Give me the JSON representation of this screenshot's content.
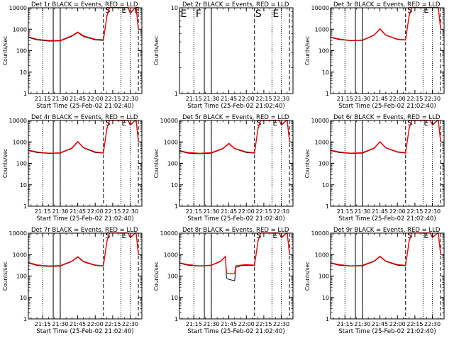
{
  "page": {
    "start_time_label": "Start Time (25-Feb-02 21:02:40)",
    "y_axis_label": "Counts/sec",
    "x_tick_labels": [
      "21:15",
      "21:30",
      "21:45",
      "22:00",
      "22:15",
      "22:30"
    ],
    "y_tick_labels": [
      "1",
      "10",
      "100",
      "1000",
      "10000"
    ],
    "series_colors": {
      "events": "#000000",
      "lld": "#ff0000"
    }
  },
  "chart_data": [
    {
      "type": "line",
      "title": "Det 1r BLACK = Events, RED = LLD",
      "xlabel": "Start Time (25-Feb-02 21:02:40)",
      "ylabel": "Counts/sec",
      "yscale": "log",
      "ylim": [
        1,
        10000
      ],
      "x_tick_labels": [
        "21:15",
        "21:30",
        "21:45",
        "22:00",
        "22:15",
        "22:30"
      ],
      "markers": {
        "dotted": [
          "21:15",
          "21:30",
          "22:22",
          "22:30"
        ],
        "solid": [
          "21:24",
          "21:30"
        ],
        "dashed": [
          "22:07",
          "22:37"
        ]
      },
      "annotations": [
        "S",
        "E",
        "E"
      ],
      "series": [
        {
          "name": "BLACK = Events",
          "color": "#000000",
          "x": [
            "21:02",
            "21:10",
            "21:20",
            "21:30",
            "21:40",
            "21:45",
            "21:50",
            "22:00",
            "22:07",
            "22:10",
            "22:12",
            "22:13",
            "22:28",
            "22:30",
            "22:35",
            "22:37"
          ],
          "y": [
            420,
            320,
            280,
            285,
            470,
            700,
            460,
            320,
            300,
            4000,
            9000,
            12000,
            12000,
            5500,
            11000,
            1000
          ]
        },
        {
          "name": "RED = LLD",
          "color": "#ff0000",
          "x": [
            "21:02",
            "21:10",
            "21:20",
            "21:30",
            "21:40",
            "21:45",
            "21:50",
            "22:00",
            "22:07",
            "22:10",
            "22:12",
            "22:13",
            "22:28",
            "22:30",
            "22:35",
            "22:37"
          ],
          "y": [
            450,
            340,
            300,
            300,
            500,
            740,
            490,
            340,
            320,
            4300,
            9500,
            12000,
            12000,
            6000,
            11500,
            1100
          ]
        }
      ]
    },
    {
      "type": "line",
      "title": "Det 2r BLACK = Events, RED = LLD",
      "xlabel": "Start Time (25-Feb-02 21:02:40)",
      "ylabel": "Counts/sec",
      "yscale": "log",
      "ylim": [
        1,
        10
      ],
      "y_tick_labels": [
        "1",
        "10"
      ],
      "x_tick_labels": [
        "21:15",
        "21:30",
        "21:45",
        "22:00",
        "22:15",
        "22:30"
      ],
      "markers": {
        "dotted": [
          "21:15",
          "21:30",
          "22:22",
          "22:30"
        ],
        "solid": [
          "21:24",
          "21:30"
        ],
        "dashed": [
          "22:07",
          "22:37"
        ]
      },
      "annotations": [
        "E",
        "F",
        "S",
        "E"
      ],
      "series": []
    },
    {
      "type": "line",
      "title": "Det 3r BLACK = Events, RED = LLD",
      "xlabel": "Start Time (25-Feb-02 21:02:40)",
      "ylabel": "Counts/sec",
      "yscale": "log",
      "ylim": [
        1,
        10000
      ],
      "x_tick_labels": [
        "21:15",
        "21:30",
        "21:45",
        "22:00",
        "22:15",
        "22:30"
      ],
      "markers": {
        "dotted": [
          "21:15",
          "21:30",
          "22:22",
          "22:30"
        ],
        "solid": [
          "21:24",
          "21:30"
        ],
        "dashed": [
          "22:07",
          "22:37"
        ]
      },
      "annotations": [
        "S",
        "E"
      ],
      "series": [
        {
          "name": "BLACK = Events",
          "color": "#000000",
          "x": [
            "21:02",
            "21:10",
            "21:20",
            "21:30",
            "21:40",
            "21:45",
            "21:50",
            "22:00",
            "22:07",
            "22:10",
            "22:12",
            "22:13",
            "22:28",
            "22:35",
            "22:37"
          ],
          "y": [
            420,
            330,
            290,
            300,
            520,
            1000,
            520,
            330,
            310,
            4000,
            9000,
            12000,
            12000,
            11000,
            1000
          ]
        },
        {
          "name": "RED = LLD",
          "color": "#ff0000",
          "x": [
            "21:02",
            "21:10",
            "21:20",
            "21:30",
            "21:40",
            "21:45",
            "21:50",
            "22:00",
            "22:07",
            "22:10",
            "22:12",
            "22:13",
            "22:28",
            "22:35",
            "22:37"
          ],
          "y": [
            440,
            350,
            300,
            310,
            540,
            1050,
            540,
            345,
            320,
            4300,
            9500,
            12000,
            12000,
            11500,
            1100
          ]
        }
      ]
    },
    {
      "type": "line",
      "title": "Det 4r BLACK = Events, RED = LLD",
      "xlabel": "Start Time (25-Feb-02 21:02:40)",
      "ylabel": "Counts/sec",
      "yscale": "log",
      "ylim": [
        1,
        10000
      ],
      "x_tick_labels": [
        "21:15",
        "21:30",
        "21:45",
        "22:00",
        "22:15",
        "22:30"
      ],
      "markers": {
        "dotted": [
          "21:15",
          "21:30",
          "22:22",
          "22:30"
        ],
        "solid": [
          "21:24",
          "21:30"
        ],
        "dashed": [
          "22:07",
          "22:37"
        ]
      },
      "annotations": [
        "S",
        "E"
      ],
      "series": [
        {
          "name": "BLACK = Events",
          "color": "#000000",
          "x": [
            "21:02",
            "21:10",
            "21:20",
            "21:30",
            "21:40",
            "21:45",
            "21:50",
            "22:00",
            "22:07",
            "22:10",
            "22:12",
            "22:13",
            "22:28",
            "22:30",
            "22:35",
            "22:37"
          ],
          "y": [
            400,
            320,
            290,
            300,
            500,
            1000,
            520,
            320,
            300,
            4000,
            9000,
            12000,
            12000,
            6000,
            11000,
            1000
          ]
        },
        {
          "name": "RED = LLD",
          "color": "#ff0000",
          "x": [
            "21:02",
            "21:10",
            "21:20",
            "21:30",
            "21:40",
            "21:45",
            "21:50",
            "22:00",
            "22:07",
            "22:10",
            "22:12",
            "22:13",
            "22:28",
            "22:30",
            "22:35",
            "22:37"
          ],
          "y": [
            420,
            340,
            300,
            310,
            520,
            1050,
            540,
            340,
            310,
            4300,
            9500,
            12000,
            12000,
            6500,
            11500,
            1100
          ]
        }
      ]
    },
    {
      "type": "line",
      "title": "Det 5r BLACK = Events, RED = LLD",
      "xlabel": "Start Time (25-Feb-02 21:02:40)",
      "ylabel": "Counts/sec",
      "yscale": "log",
      "ylim": [
        1,
        10000
      ],
      "x_tick_labels": [
        "21:15",
        "21:30",
        "21:45",
        "22:00",
        "22:15",
        "22:30"
      ],
      "markers": {
        "dotted": [
          "21:15",
          "21:30",
          "22:22",
          "22:30"
        ],
        "solid": [
          "21:24",
          "21:30"
        ],
        "dashed": [
          "22:07",
          "22:37"
        ]
      },
      "annotations": [
        "S",
        "E"
      ],
      "series": [
        {
          "name": "BLACK = Events",
          "color": "#000000",
          "x": [
            "21:02",
            "21:10",
            "21:20",
            "21:30",
            "21:40",
            "21:45",
            "21:50",
            "22:00",
            "22:07",
            "22:10",
            "22:12",
            "22:13",
            "22:28",
            "22:30",
            "22:35",
            "22:37"
          ],
          "y": [
            380,
            300,
            280,
            300,
            480,
            820,
            480,
            320,
            300,
            4000,
            9000,
            12000,
            12000,
            6000,
            11000,
            1000
          ]
        },
        {
          "name": "RED = LLD",
          "color": "#ff0000",
          "x": [
            "21:02",
            "21:10",
            "21:20",
            "21:30",
            "21:40",
            "21:45",
            "21:50",
            "22:00",
            "22:07",
            "22:10",
            "22:12",
            "22:13",
            "22:28",
            "22:30",
            "22:35",
            "22:37"
          ],
          "y": [
            400,
            320,
            295,
            315,
            500,
            860,
            500,
            340,
            315,
            4300,
            9500,
            12000,
            12000,
            6500,
            11500,
            1100
          ]
        }
      ]
    },
    {
      "type": "line",
      "title": "Det 6r BLACK = Events, RED = LLD",
      "xlabel": "Start Time (25-Feb-02 21:02:40)",
      "ylabel": "Counts/sec",
      "yscale": "log",
      "ylim": [
        1,
        10000
      ],
      "x_tick_labels": [
        "21:15",
        "21:30",
        "21:45",
        "22:00",
        "22:15",
        "22:30"
      ],
      "markers": {
        "dotted": [
          "21:15",
          "21:30",
          "22:22",
          "22:30"
        ],
        "solid": [
          "21:24",
          "21:30"
        ],
        "dashed": [
          "22:07",
          "22:37"
        ]
      },
      "annotations": [
        "S",
        "E"
      ],
      "series": [
        {
          "name": "BLACK = Events",
          "color": "#000000",
          "x": [
            "21:02",
            "21:10",
            "21:20",
            "21:30",
            "21:40",
            "21:45",
            "21:50",
            "22:00",
            "22:07",
            "22:10",
            "22:12",
            "22:13",
            "22:28",
            "22:30",
            "22:35",
            "22:37"
          ],
          "y": [
            400,
            320,
            290,
            300,
            500,
            980,
            520,
            330,
            300,
            4000,
            9000,
            12000,
            12000,
            6000,
            11000,
            1000
          ]
        },
        {
          "name": "RED = LLD",
          "color": "#ff0000",
          "x": [
            "21:02",
            "21:10",
            "21:20",
            "21:30",
            "21:40",
            "21:45",
            "21:50",
            "22:00",
            "22:07",
            "22:10",
            "22:12",
            "22:13",
            "22:28",
            "22:30",
            "22:35",
            "22:37"
          ],
          "y": [
            420,
            340,
            300,
            315,
            520,
            1020,
            540,
            345,
            315,
            4300,
            9500,
            12000,
            12000,
            6500,
            11500,
            1100
          ]
        }
      ]
    },
    {
      "type": "line",
      "title": "Det 7r BLACK = Events, RED = LLD",
      "xlabel": "Start Time (25-Feb-02 21:02:40)",
      "ylabel": "Counts/sec",
      "yscale": "log",
      "ylim": [
        1,
        10000
      ],
      "x_tick_labels": [
        "21:15",
        "21:30",
        "21:45",
        "22:00",
        "22:15",
        "22:30"
      ],
      "markers": {
        "dotted": [
          "21:15",
          "21:30",
          "22:22",
          "22:30"
        ],
        "solid": [
          "21:24",
          "21:30"
        ],
        "dashed": [
          "22:07",
          "22:37"
        ]
      },
      "annotations": [
        "S",
        "E"
      ],
      "series": [
        {
          "name": "BLACK = Events",
          "color": "#000000",
          "x": [
            "21:02",
            "21:10",
            "21:20",
            "21:30",
            "21:40",
            "21:45",
            "21:50",
            "22:00",
            "22:07",
            "22:10",
            "22:12",
            "22:13",
            "22:28",
            "22:30",
            "22:35",
            "22:37"
          ],
          "y": [
            420,
            310,
            280,
            290,
            480,
            760,
            460,
            310,
            290,
            4000,
            9000,
            12000,
            12000,
            6000,
            11000,
            1000
          ]
        },
        {
          "name": "RED = LLD",
          "color": "#ff0000",
          "x": [
            "21:02",
            "21:10",
            "21:20",
            "21:30",
            "21:40",
            "21:45",
            "21:50",
            "22:00",
            "22:07",
            "22:10",
            "22:12",
            "22:13",
            "22:28",
            "22:30",
            "22:35",
            "22:37"
          ],
          "y": [
            440,
            330,
            295,
            305,
            500,
            800,
            480,
            325,
            305,
            4300,
            9500,
            12000,
            12000,
            6500,
            11500,
            1100
          ]
        }
      ]
    },
    {
      "type": "line",
      "title": "Det 8r BLACK = Events, RED = LLD",
      "xlabel": "Start Time (25-Feb-02 21:02:40)",
      "ylabel": "Counts/sec",
      "yscale": "log",
      "ylim": [
        1,
        10000
      ],
      "x_tick_labels": [
        "21:15",
        "21:30",
        "21:45",
        "22:00",
        "22:15",
        "22:30"
      ],
      "markers": {
        "dotted": [
          "21:15",
          "21:30",
          "22:22",
          "22:30"
        ],
        "solid": [
          "21:24",
          "21:30"
        ],
        "dashed": [
          "22:07",
          "22:37"
        ]
      },
      "annotations": [
        "S",
        "E"
      ],
      "series": [
        {
          "name": "BLACK = Events",
          "color": "#000000",
          "x": [
            "21:02",
            "21:10",
            "21:20",
            "21:30",
            "21:38",
            "21:42",
            "21:43",
            "21:45",
            "21:50",
            "21:51",
            "21:55",
            "22:00",
            "22:07",
            "22:10",
            "22:12",
            "22:13",
            "22:28",
            "22:30",
            "22:35",
            "22:37"
          ],
          "y": [
            400,
            320,
            290,
            310,
            480,
            800,
            80,
            70,
            60,
            250,
            300,
            320,
            310,
            4000,
            9000,
            12000,
            12000,
            6000,
            11000,
            1000
          ]
        },
        {
          "name": "RED = LLD",
          "color": "#ff0000",
          "x": [
            "21:02",
            "21:10",
            "21:20",
            "21:30",
            "21:38",
            "21:42",
            "21:43",
            "21:45",
            "21:50",
            "21:51",
            "21:55",
            "22:00",
            "22:07",
            "22:10",
            "22:12",
            "22:13",
            "22:28",
            "22:30",
            "22:35",
            "22:37"
          ],
          "y": [
            420,
            340,
            300,
            320,
            500,
            830,
            140,
            130,
            130,
            300,
            320,
            340,
            320,
            4300,
            9500,
            12000,
            12000,
            6500,
            11500,
            1100
          ]
        }
      ]
    },
    {
      "type": "line",
      "title": "Det 9r BLACK = Events, RED = LLD",
      "xlabel": "Start Time (25-Feb-02 21:02:40)",
      "ylabel": "Counts/sec",
      "yscale": "log",
      "ylim": [
        1,
        10000
      ],
      "x_tick_labels": [
        "21:15",
        "21:30",
        "21:45",
        "22:00",
        "22:15",
        "22:30"
      ],
      "markers": {
        "dotted": [
          "21:15",
          "21:30",
          "22:22",
          "22:30"
        ],
        "solid": [
          "21:24",
          "21:30"
        ],
        "dashed": [
          "22:07",
          "22:37"
        ]
      },
      "annotations": [
        "S",
        "E"
      ],
      "series": [
        {
          "name": "BLACK = Events",
          "color": "#000000",
          "x": [
            "21:02",
            "21:10",
            "21:20",
            "21:30",
            "21:40",
            "21:45",
            "21:50",
            "22:00",
            "22:07",
            "22:10",
            "22:12",
            "22:13",
            "22:28",
            "22:30",
            "22:35",
            "22:37"
          ],
          "y": [
            400,
            320,
            290,
            300,
            480,
            800,
            480,
            320,
            300,
            4000,
            9000,
            12000,
            12000,
            6000,
            11000,
            1000
          ]
        },
        {
          "name": "RED = LLD",
          "color": "#ff0000",
          "x": [
            "21:02",
            "21:10",
            "21:20",
            "21:30",
            "21:40",
            "21:45",
            "21:50",
            "22:00",
            "22:07",
            "22:10",
            "22:12",
            "22:13",
            "22:28",
            "22:30",
            "22:35",
            "22:37"
          ],
          "y": [
            420,
            340,
            300,
            315,
            500,
            840,
            500,
            340,
            315,
            4300,
            9500,
            12000,
            12000,
            6500,
            11500,
            1100
          ]
        }
      ]
    }
  ]
}
